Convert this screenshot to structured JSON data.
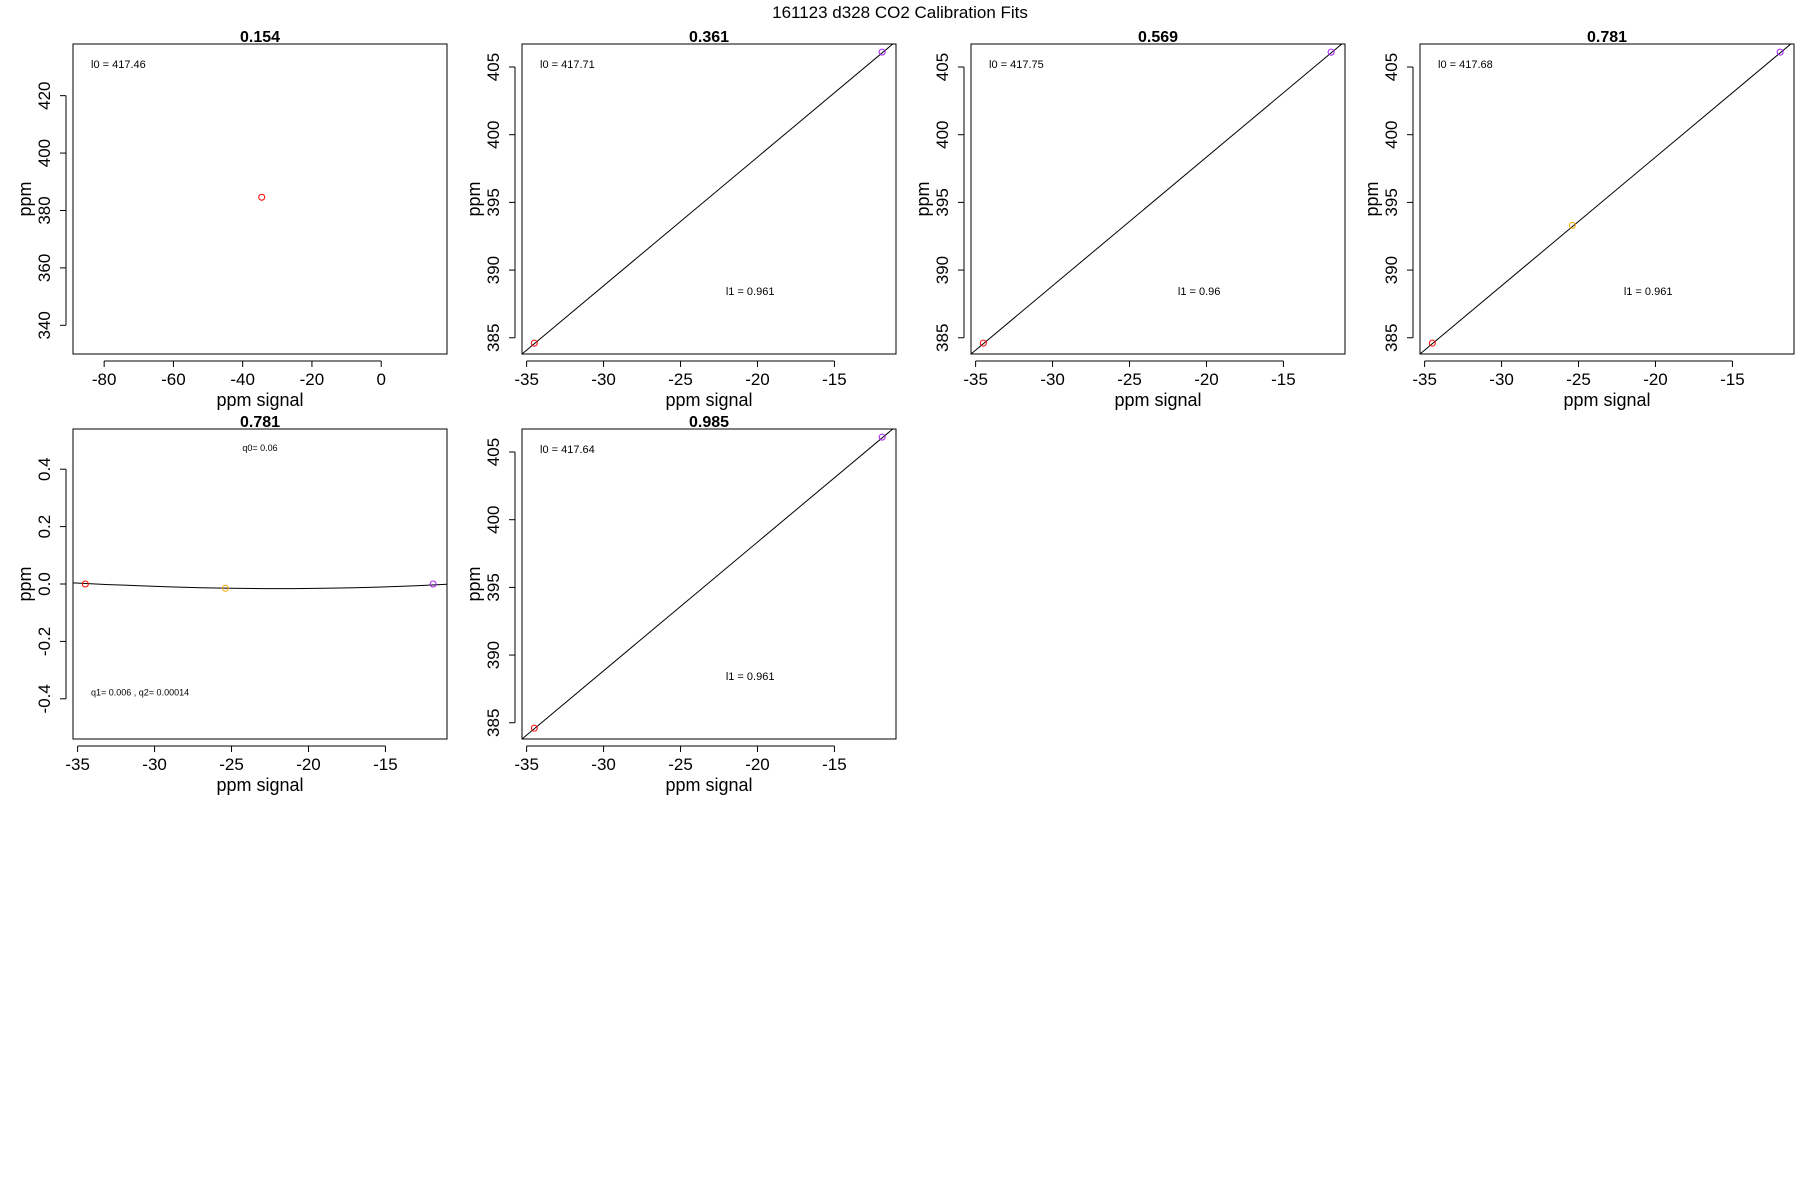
{
  "figure_title": "161123   d328   CO2 Calibration Fits",
  "colors": {
    "axis": "#000000",
    "fit_line": "#000000",
    "point_low": "#ff0000",
    "point_mid": "#ffa500",
    "point_high": "#a020f0"
  },
  "chart_data": [
    {
      "type": "scatter",
      "title": "0.154",
      "xlabel": "ppm signal",
      "ylabel": "ppm",
      "xlim": [
        -89,
        19
      ],
      "ylim": [
        330,
        438
      ],
      "xticks": [
        -80,
        -60,
        -40,
        -20,
        0
      ],
      "xtick_labels": [
        "-80",
        "-60",
        "-40",
        "-20",
        "0"
      ],
      "yticks": [
        340,
        360,
        380,
        400,
        420
      ],
      "ytick_labels": [
        "340",
        "360",
        "380",
        "400",
        "420"
      ],
      "points": [
        {
          "x": -34.5,
          "y": 384.6,
          "color": "#ff0000"
        }
      ],
      "fit_line": null,
      "annotations": [
        {
          "text": "l0 =  417.46",
          "pos": "top-left"
        }
      ]
    },
    {
      "type": "scatter",
      "title": "0.361",
      "xlabel": "ppm signal",
      "ylabel": "ppm",
      "xlim": [
        -35.3,
        -11.0
      ],
      "ylim": [
        383.8,
        406.7
      ],
      "xticks": [
        -35,
        -30,
        -25,
        -20,
        -15
      ],
      "xtick_labels": [
        "-35",
        "-30",
        "-25",
        "-20",
        "-15"
      ],
      "yticks": [
        385,
        390,
        395,
        400,
        405
      ],
      "ytick_labels": [
        "385",
        "390",
        "395",
        "400",
        "405"
      ],
      "points": [
        {
          "x": -34.5,
          "y": 384.6,
          "color": "#ff0000"
        },
        {
          "x": -11.9,
          "y": 406.1,
          "color": "#a020f0"
        }
      ],
      "fit_line": {
        "from": [
          -35.3,
          383.8
        ],
        "to": [
          -11.0,
          406.9
        ]
      },
      "annotations": [
        {
          "text": "l0 =  417.71",
          "pos": "top-left"
        },
        {
          "text": "l1 =  0.961",
          "pos": "center-right"
        }
      ]
    },
    {
      "type": "scatter",
      "title": "0.569",
      "xlabel": "ppm signal",
      "ylabel": "ppm",
      "xlim": [
        -35.3,
        -11.0
      ],
      "ylim": [
        383.8,
        406.7
      ],
      "xticks": [
        -35,
        -30,
        -25,
        -20,
        -15
      ],
      "xtick_labels": [
        "-35",
        "-30",
        "-25",
        "-20",
        "-15"
      ],
      "yticks": [
        385,
        390,
        395,
        400,
        405
      ],
      "ytick_labels": [
        "385",
        "390",
        "395",
        "400",
        "405"
      ],
      "points": [
        {
          "x": -34.5,
          "y": 384.6,
          "color": "#ff0000"
        },
        {
          "x": -11.9,
          "y": 406.1,
          "color": "#a020f0"
        }
      ],
      "fit_line": {
        "from": [
          -35.3,
          383.8
        ],
        "to": [
          -11.0,
          406.9
        ]
      },
      "annotations": [
        {
          "text": "l0 =  417.75",
          "pos": "top-left"
        },
        {
          "text": "l1 =  0.96",
          "pos": "center-right"
        }
      ]
    },
    {
      "type": "scatter",
      "title": "0.781",
      "xlabel": "ppm signal",
      "ylabel": "ppm",
      "xlim": [
        -35.3,
        -11.0
      ],
      "ylim": [
        383.8,
        406.7
      ],
      "xticks": [
        -35,
        -30,
        -25,
        -20,
        -15
      ],
      "xtick_labels": [
        "-35",
        "-30",
        "-25",
        "-20",
        "-15"
      ],
      "yticks": [
        385,
        390,
        395,
        400,
        405
      ],
      "ytick_labels": [
        "385",
        "390",
        "395",
        "400",
        "405"
      ],
      "points": [
        {
          "x": -34.5,
          "y": 384.6,
          "color": "#ff0000"
        },
        {
          "x": -25.4,
          "y": 393.3,
          "color": "#ffa500"
        },
        {
          "x": -11.9,
          "y": 406.1,
          "color": "#a020f0"
        }
      ],
      "fit_line": {
        "from": [
          -35.3,
          383.8
        ],
        "to": [
          -11.0,
          406.9
        ]
      },
      "annotations": [
        {
          "text": "l0 =  417.68",
          "pos": "top-left"
        },
        {
          "text": "l1 =  0.961",
          "pos": "center-right"
        }
      ]
    },
    {
      "type": "scatter",
      "title": "0.781",
      "xlabel": "ppm signal",
      "ylabel": "ppm",
      "xlim": [
        -35.3,
        -11.0
      ],
      "ylim": [
        -0.54,
        0.54
      ],
      "xticks": [
        -35,
        -30,
        -25,
        -20,
        -15
      ],
      "xtick_labels": [
        "-35",
        "-30",
        "-25",
        "-20",
        "-15"
      ],
      "yticks": [
        -0.4,
        -0.2,
        0.0,
        0.2,
        0.4
      ],
      "ytick_labels": [
        "-0.4",
        "-0.2",
        "0.0",
        "0.2",
        "0.4"
      ],
      "points": [
        {
          "x": -34.5,
          "y": 0.0,
          "color": "#ff0000"
        },
        {
          "x": -25.4,
          "y": -0.015,
          "color": "#ffa500"
        },
        {
          "x": -11.9,
          "y": 0.0,
          "color": "#a020f0"
        }
      ],
      "fit_curve": {
        "x": [
          -35.3,
          -33,
          -31,
          -29,
          -27,
          -25,
          -23,
          -21,
          -19,
          -17,
          -15,
          -13,
          -11
        ],
        "y": [
          0.004,
          -0.002,
          -0.006,
          -0.01,
          -0.013,
          -0.015,
          -0.016,
          -0.016,
          -0.015,
          -0.013,
          -0.01,
          -0.006,
          -0.001
        ]
      },
      "annotations": [
        {
          "text": "q0= 0.06",
          "pos": "top-center"
        },
        {
          "text": "q1= 0.006 , q2= 0.00014",
          "pos": "bottom-left"
        }
      ]
    },
    {
      "type": "scatter",
      "title": "0.985",
      "xlabel": "ppm signal",
      "ylabel": "ppm",
      "xlim": [
        -35.3,
        -11.0
      ],
      "ylim": [
        383.8,
        406.7
      ],
      "xticks": [
        -35,
        -30,
        -25,
        -20,
        -15
      ],
      "xtick_labels": [
        "-35",
        "-30",
        "-25",
        "-20",
        "-15"
      ],
      "yticks": [
        385,
        390,
        395,
        400,
        405
      ],
      "ytick_labels": [
        "385",
        "390",
        "395",
        "400",
        "405"
      ],
      "points": [
        {
          "x": -34.5,
          "y": 384.6,
          "color": "#ff0000"
        },
        {
          "x": -11.9,
          "y": 406.1,
          "color": "#a020f0"
        }
      ],
      "fit_line": {
        "from": [
          -35.3,
          383.8
        ],
        "to": [
          -11.0,
          406.9
        ]
      },
      "annotations": [
        {
          "text": "l0 =  417.64",
          "pos": "top-left"
        },
        {
          "text": "l1 =  0.961",
          "pos": "center-right"
        }
      ]
    }
  ]
}
